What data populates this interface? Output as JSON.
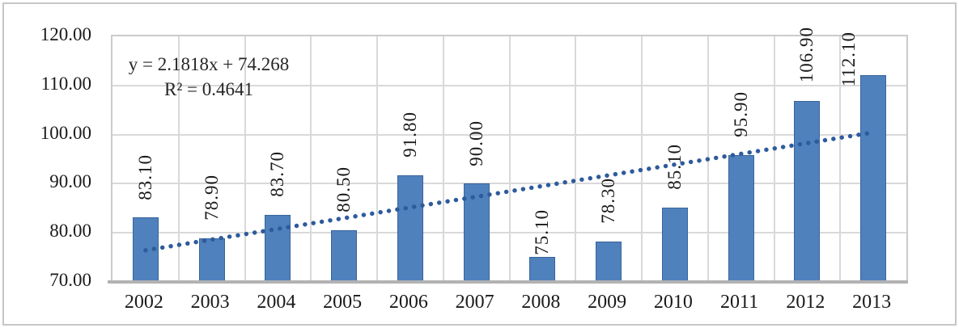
{
  "figure": {
    "background_color": "#ffffff",
    "frame_color": "#c6c6c6"
  },
  "colors": {
    "bar_fill": "#4f81bd",
    "bar_border": "#38649b",
    "trendline": "#2e5b9b",
    "gridline": "#d9d9d9",
    "plot_border": "#cbcbcb",
    "axis_line": "#b2b2b2",
    "text": "#1a1a1a"
  },
  "chart_data": {
    "type": "bar",
    "title": "",
    "xlabel": "",
    "ylabel": "",
    "categories": [
      "2002",
      "2003",
      "2004",
      "2005",
      "2006",
      "2007",
      "2008",
      "2009",
      "2010",
      "2011",
      "2012",
      "2013"
    ],
    "values": [
      83.1,
      78.9,
      83.7,
      80.5,
      91.8,
      90.0,
      75.1,
      78.3,
      85.1,
      95.9,
      106.9,
      112.1
    ],
    "value_labels": [
      "83.10",
      "78.90",
      "83.70",
      "80.50",
      "91.80",
      "90.00",
      "75.10",
      "78.30",
      "85.10",
      "95.90",
      "106.90",
      "112.10"
    ],
    "ylim": [
      70,
      120
    ],
    "ytick_values": [
      120,
      110,
      100,
      90,
      80,
      70
    ],
    "ytick_labels": [
      "120.00",
      "110.00",
      "100.00",
      "90.00",
      "80.00",
      "70.00"
    ],
    "grid": true,
    "legend": "none",
    "trendline": {
      "type": "linear",
      "slope": 2.1818,
      "intercept": 74.268,
      "style": "dotted",
      "equation_label": "y = 2.1818x + 74.268",
      "r_squared_label": "R² = 0.4641"
    }
  }
}
